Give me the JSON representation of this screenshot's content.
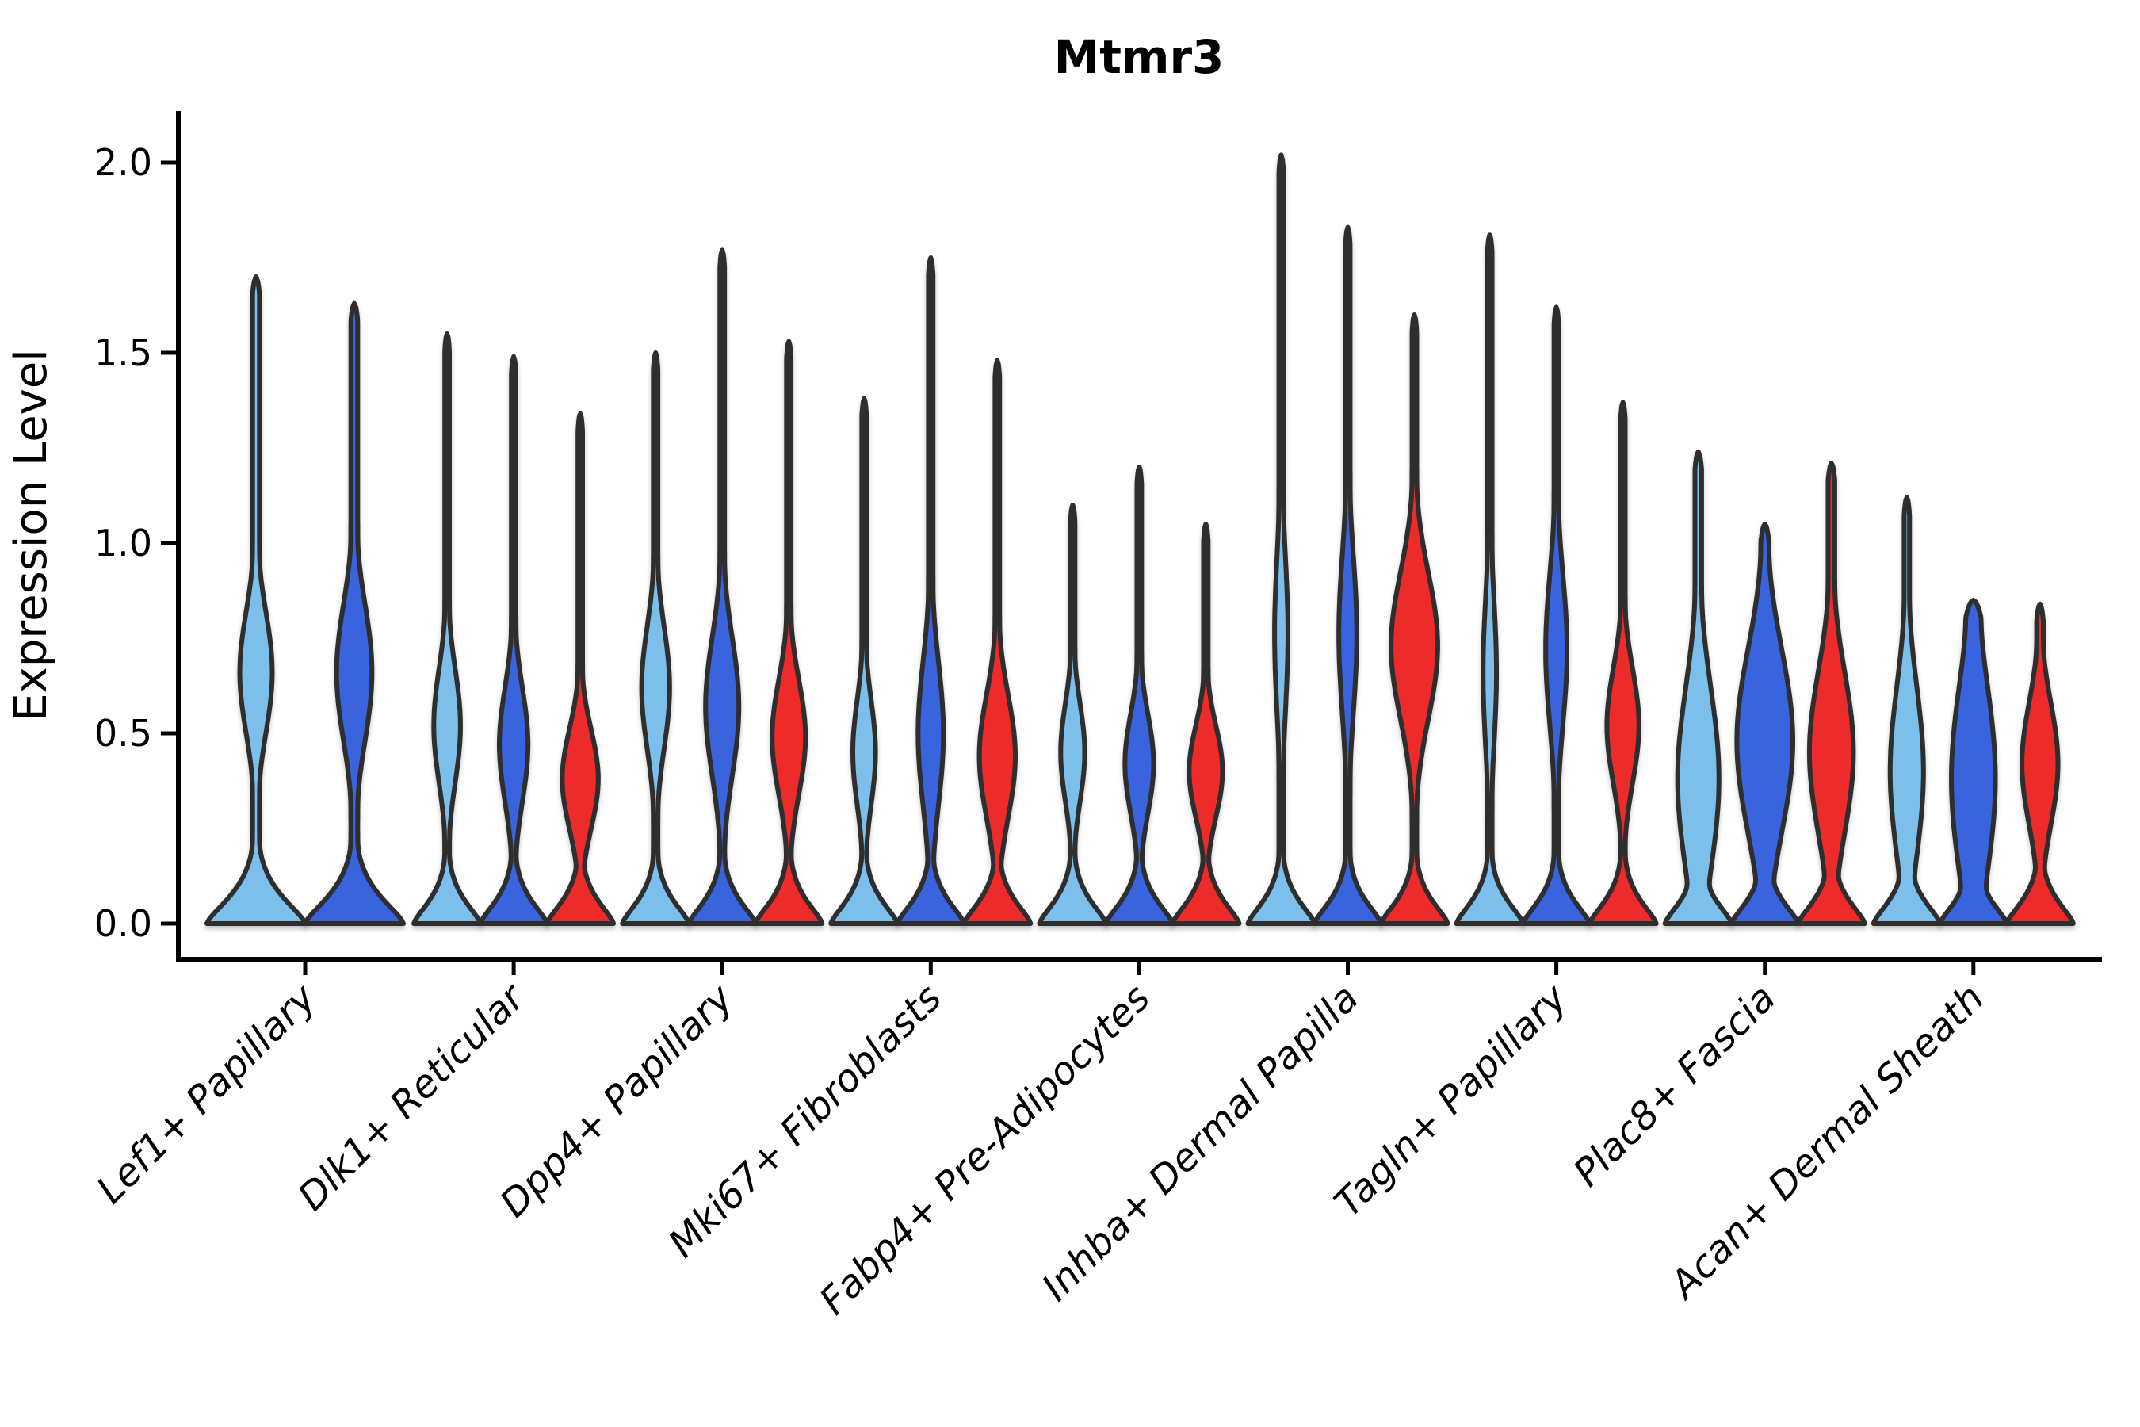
{
  "title": "Mtmr3",
  "ylabel": "Expression Level",
  "axis": {
    "yticks": [
      {
        "value": 0.0,
        "label": "0.0"
      },
      {
        "value": 0.5,
        "label": "0.5"
      },
      {
        "value": 1.0,
        "label": "1.0"
      },
      {
        "value": 1.5,
        "label": "1.5"
      },
      {
        "value": 2.0,
        "label": "2.0"
      }
    ],
    "ylim": [
      0,
      2.14
    ]
  },
  "colors": {
    "light_blue": "#7CBFEA",
    "dark_blue": "#3A63DE",
    "red": "#EE2B2B",
    "outline": "#2E2E2E",
    "axis": "#000000"
  },
  "chart_data": {
    "type": "violin",
    "title": "Mtmr3",
    "xlabel": "",
    "ylabel": "Expression Level",
    "ylim": [
      0,
      2.14
    ],
    "yticks": [
      0.0,
      0.5,
      1.0,
      1.5,
      2.0
    ],
    "grid": false,
    "legend": "none",
    "series_colors": [
      "#7CBFEA",
      "#3A63DE",
      "#EE2B2B"
    ],
    "categories": [
      "Lef1+ Papillary",
      "Dlk1+ Reticular",
      "Dpp4+ Papillary",
      "Mki67+ Fibroblasts",
      "Fabp4+ Pre-Adipocytes",
      "Inhba+ Dermal Papilla",
      "Tagln+ Papillary",
      "Plac8+ Fascia",
      "Acan+ Dermal Sheath"
    ],
    "violins": [
      {
        "category": "Lef1+ Papillary",
        "parts": [
          {
            "series": 0,
            "max": 1.7,
            "bulge_center": 0.66,
            "bulge_halfwidth": 0.33,
            "bulge_sigma": 0.16,
            "base_sigma": 0.1
          },
          {
            "series": 1,
            "max": 1.63,
            "bulge_center": 0.66,
            "bulge_halfwidth": 0.36,
            "bulge_sigma": 0.18,
            "base_sigma": 0.1
          }
        ]
      },
      {
        "category": "Dlk1+ Reticular",
        "parts": [
          {
            "series": 0,
            "max": 1.55,
            "bulge_center": 0.52,
            "bulge_halfwidth": 0.4,
            "bulge_sigma": 0.15
          },
          {
            "series": 1,
            "max": 1.49,
            "bulge_center": 0.47,
            "bulge_halfwidth": 0.43,
            "bulge_sigma": 0.15
          },
          {
            "series": 2,
            "max": 1.34,
            "bulge_center": 0.38,
            "bulge_halfwidth": 0.54,
            "bulge_sigma": 0.13
          }
        ]
      },
      {
        "category": "Dpp4+ Papillary",
        "parts": [
          {
            "series": 0,
            "max": 1.5,
            "bulge_center": 0.62,
            "bulge_halfwidth": 0.42,
            "bulge_sigma": 0.16
          },
          {
            "series": 1,
            "max": 1.77,
            "bulge_center": 0.57,
            "bulge_halfwidth": 0.5,
            "bulge_sigma": 0.18
          },
          {
            "series": 2,
            "max": 1.53,
            "bulge_center": 0.49,
            "bulge_halfwidth": 0.5,
            "bulge_sigma": 0.15
          }
        ]
      },
      {
        "category": "Mki67+ Fibroblasts",
        "parts": [
          {
            "series": 0,
            "max": 1.38,
            "bulge_center": 0.45,
            "bulge_halfwidth": 0.34,
            "bulge_sigma": 0.14
          },
          {
            "series": 1,
            "max": 1.75,
            "bulge_center": 0.5,
            "bulge_halfwidth": 0.38,
            "bulge_sigma": 0.19
          },
          {
            "series": 2,
            "max": 1.48,
            "bulge_center": 0.44,
            "bulge_halfwidth": 0.54,
            "bulge_sigma": 0.16
          }
        ]
      },
      {
        "category": "Fabp4+ Pre-Adipocytes",
        "parts": [
          {
            "series": 0,
            "max": 1.1,
            "bulge_center": 0.45,
            "bulge_halfwidth": 0.36,
            "bulge_sigma": 0.13
          },
          {
            "series": 1,
            "max": 1.2,
            "bulge_center": 0.42,
            "bulge_halfwidth": 0.43,
            "bulge_sigma": 0.13
          },
          {
            "series": 2,
            "max": 1.05,
            "bulge_center": 0.4,
            "bulge_halfwidth": 0.5,
            "bulge_sigma": 0.12
          }
        ]
      },
      {
        "category": "Inhba+ Dermal Papilla",
        "parts": [
          {
            "series": 0,
            "max": 2.02,
            "bulge_center": 0.76,
            "bulge_halfwidth": 0.2,
            "bulge_sigma": 0.21
          },
          {
            "series": 1,
            "max": 1.83,
            "bulge_center": 0.76,
            "bulge_halfwidth": 0.27,
            "bulge_sigma": 0.21
          },
          {
            "series": 2,
            "max": 1.6,
            "bulge_center": 0.73,
            "bulge_halfwidth": 0.7,
            "bulge_sigma": 0.19
          }
        ]
      },
      {
        "category": "Tagln+ Papillary",
        "parts": [
          {
            "series": 0,
            "max": 1.81,
            "bulge_center": 0.66,
            "bulge_halfwidth": 0.2,
            "bulge_sigma": 0.2
          },
          {
            "series": 1,
            "max": 1.62,
            "bulge_center": 0.72,
            "bulge_halfwidth": 0.32,
            "bulge_sigma": 0.2
          },
          {
            "series": 2,
            "max": 1.37,
            "bulge_center": 0.52,
            "bulge_halfwidth": 0.48,
            "bulge_sigma": 0.15
          }
        ]
      },
      {
        "category": "Plac8+ Fascia",
        "parts": [
          {
            "series": 0,
            "max": 1.24,
            "bulge_center": 0.38,
            "bulge_halfwidth": 0.62,
            "bulge_sigma": 0.24,
            "neck": 0.1
          },
          {
            "series": 1,
            "max": 1.05,
            "bulge_center": 0.48,
            "bulge_halfwidth": 0.84,
            "bulge_sigma": 0.24,
            "neck": 0.12
          },
          {
            "series": 2,
            "max": 1.21,
            "bulge_center": 0.45,
            "bulge_halfwidth": 0.66,
            "bulge_sigma": 0.21,
            "neck": 0.1
          }
        ]
      },
      {
        "category": "Acan+ Dermal Sheath",
        "parts": [
          {
            "series": 0,
            "max": 1.12,
            "bulge_center": 0.4,
            "bulge_halfwidth": 0.5,
            "bulge_sigma": 0.22,
            "neck": 0.08
          },
          {
            "series": 1,
            "max": 0.85,
            "bulge_center": 0.38,
            "bulge_halfwidth": 0.66,
            "bulge_sigma": 0.26,
            "neck": 0.22
          },
          {
            "series": 2,
            "max": 0.84,
            "bulge_center": 0.42,
            "bulge_halfwidth": 0.54,
            "bulge_sigma": 0.16,
            "neck": 0.1
          }
        ]
      }
    ]
  }
}
